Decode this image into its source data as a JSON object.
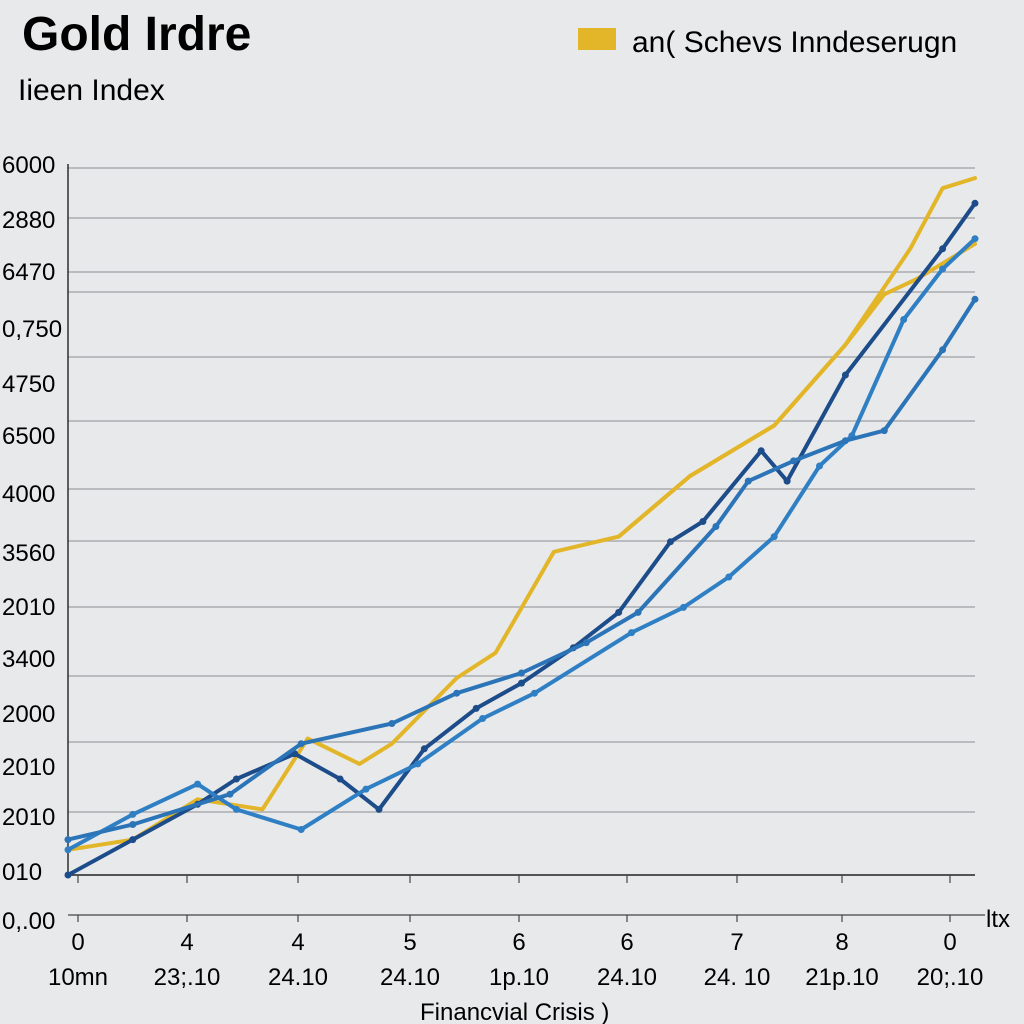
{
  "chart_data": {
    "type": "line",
    "title": "Gold Irdre",
    "subtitle": "Iieen Index",
    "legend": {
      "label": "an( Schevs Inndeserugn",
      "color": "#e3b528",
      "placement": "top-right"
    },
    "y_tick_labels": [
      "6000",
      "2880",
      "6470",
      "0,750",
      "4750",
      "6500",
      "4000",
      "3560",
      "2010",
      "3400",
      "2000",
      "2010",
      "2010",
      "010",
      "0,.00"
    ],
    "x_tick_numbers": [
      "0",
      "4",
      "4",
      "5",
      "6",
      "6",
      "7",
      "8",
      "0"
    ],
    "x_tick_dates": [
      "10mn",
      "23;.10",
      "24.10",
      "24.10",
      "1p.10",
      "24.10",
      "24. 10",
      "21p.10",
      "20;.10"
    ],
    "x_axis_end_label": "ltx",
    "xlabel": "Financvial Crisis )",
    "grid": true,
    "x_range": [
      0,
      14
    ],
    "y_range": [
      0,
      14
    ],
    "series": [
      {
        "name": "gold",
        "color": "#e3b528",
        "x": [
          0,
          1,
          2,
          3,
          3.7,
          4.5,
          5,
          6,
          6.6,
          7.5,
          8.5,
          9.6,
          10.9,
          12,
          13,
          13.5,
          14
        ],
        "y": [
          0.5,
          0.7,
          1.5,
          1.3,
          2.7,
          2.2,
          2.6,
          3.9,
          4.4,
          6.4,
          6.7,
          7.9,
          8.9,
          10.5,
          12.4,
          13.6,
          13.8
        ]
      },
      {
        "name": "gold-2",
        "color": "#e3b528",
        "x": [
          8.5,
          9.6,
          10.9,
          12,
          12.6,
          13.1,
          14
        ],
        "y": [
          6.7,
          7.9,
          8.9,
          10.5,
          11.5,
          11.8,
          12.5
        ]
      },
      {
        "name": "dark-blue",
        "color": "#1d4c8a",
        "x": [
          0,
          1,
          2,
          2.6,
          3.5,
          4.2,
          4.8,
          5.5,
          6.3,
          7,
          7.8,
          8.5,
          9.3,
          9.8,
          10.7,
          11.1,
          12,
          13.5,
          14
        ],
        "y": [
          0,
          0.7,
          1.4,
          1.9,
          2.4,
          1.9,
          1.3,
          2.5,
          3.3,
          3.8,
          4.5,
          5.2,
          6.6,
          7,
          8.4,
          7.8,
          9.9,
          12.4,
          13.3
        ]
      },
      {
        "name": "light-blue",
        "color": "#2f7fc4",
        "x": [
          0,
          1,
          2,
          2.6,
          3.6,
          4.6,
          5.4,
          6.4,
          7.2,
          8.7,
          9.5,
          10.2,
          10.9,
          11.6,
          12.1,
          12.9,
          13.5,
          14
        ],
        "y": [
          0.5,
          1.2,
          1.8,
          1.3,
          0.9,
          1.7,
          2.2,
          3.1,
          3.6,
          4.8,
          5.3,
          5.9,
          6.7,
          8.1,
          8.7,
          11.0,
          12.0,
          12.6
        ]
      },
      {
        "name": "mid-blue",
        "color": "#2b74b8",
        "x": [
          0,
          1,
          2.5,
          3.6,
          5,
          6,
          7,
          8,
          8.8,
          10,
          10.5,
          11.2,
          12,
          12.6,
          13.5,
          14
        ],
        "y": [
          0.7,
          1.0,
          1.6,
          2.6,
          3.0,
          3.6,
          4.0,
          4.6,
          5.2,
          6.9,
          7.8,
          8.2,
          8.6,
          8.8,
          10.4,
          11.4
        ]
      }
    ]
  }
}
